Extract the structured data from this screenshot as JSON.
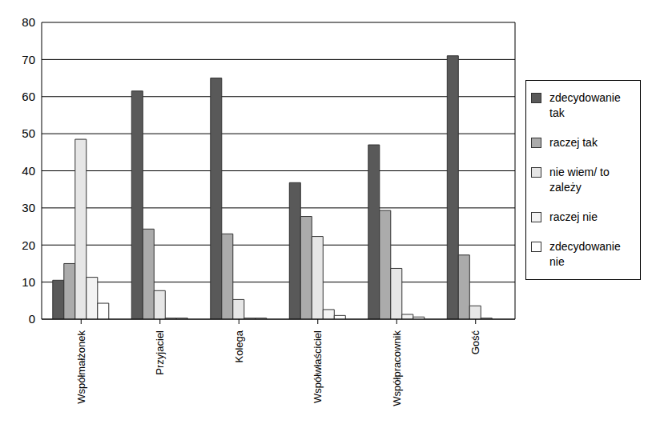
{
  "chart_data": {
    "type": "bar",
    "categories": [
      "Współmałżonek",
      "Przyjaciel",
      "Kolega",
      "Współwłaściciel",
      "Współpracownik",
      "Gość"
    ],
    "series": [
      {
        "name": "zdecydowanie tak",
        "color": "#595959",
        "values": [
          10.5,
          61.5,
          65,
          36.8,
          47,
          71
        ]
      },
      {
        "name": "raczej tak",
        "color": "#ababab",
        "values": [
          15,
          24.3,
          23,
          27.7,
          29.3,
          17.3
        ]
      },
      {
        "name": "nie wiem/ to zależy",
        "color": "#e6e6e6",
        "values": [
          48.5,
          7.7,
          5.3,
          22.3,
          13.7,
          3.6
        ]
      },
      {
        "name": "raczej nie",
        "color": "#f3f3f3",
        "values": [
          11.3,
          0.3,
          0.3,
          2.6,
          1.3,
          0.3
        ]
      },
      {
        "name": "zdecydowanie nie",
        "color": "#ffffff",
        "values": [
          4.3,
          0.3,
          0.3,
          1.0,
          0.6,
          0
        ]
      }
    ],
    "ylim": [
      0,
      80
    ],
    "yticks": [
      0,
      10,
      20,
      30,
      40,
      50,
      60,
      70,
      80
    ],
    "grid": true,
    "legend": "right"
  }
}
